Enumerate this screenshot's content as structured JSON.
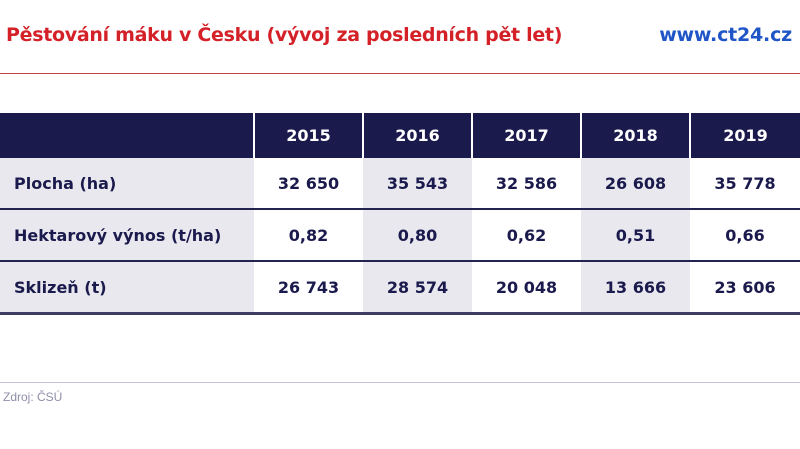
{
  "header": {
    "title": "Pěstování máku v Česku (vývoj za posledních pět let)",
    "brand": "www.ct24.cz"
  },
  "colors": {
    "title_red": "#d42027",
    "brand_blue": "#1f55c6",
    "table_header_navy": "#1b1a4d",
    "shaded_column": "#e8e8ee"
  },
  "table": {
    "columns": [
      "",
      "2015",
      "2016",
      "2017",
      "2018",
      "2019"
    ],
    "rows": [
      {
        "label": "Plocha (ha)",
        "values": [
          "32 650",
          "35 543",
          "32 586",
          "26 608",
          "35 778"
        ]
      },
      {
        "label": "Hektarový výnos (t/ha)",
        "values": [
          "0,82",
          "0,80",
          "0,62",
          "0,51",
          "0,66"
        ]
      },
      {
        "label": "Sklizeň (t)",
        "values": [
          "26 743",
          "28 574",
          "20 048",
          "13 666",
          "23 606"
        ]
      }
    ]
  },
  "footer": {
    "source": "Zdroj: ČSÚ"
  }
}
